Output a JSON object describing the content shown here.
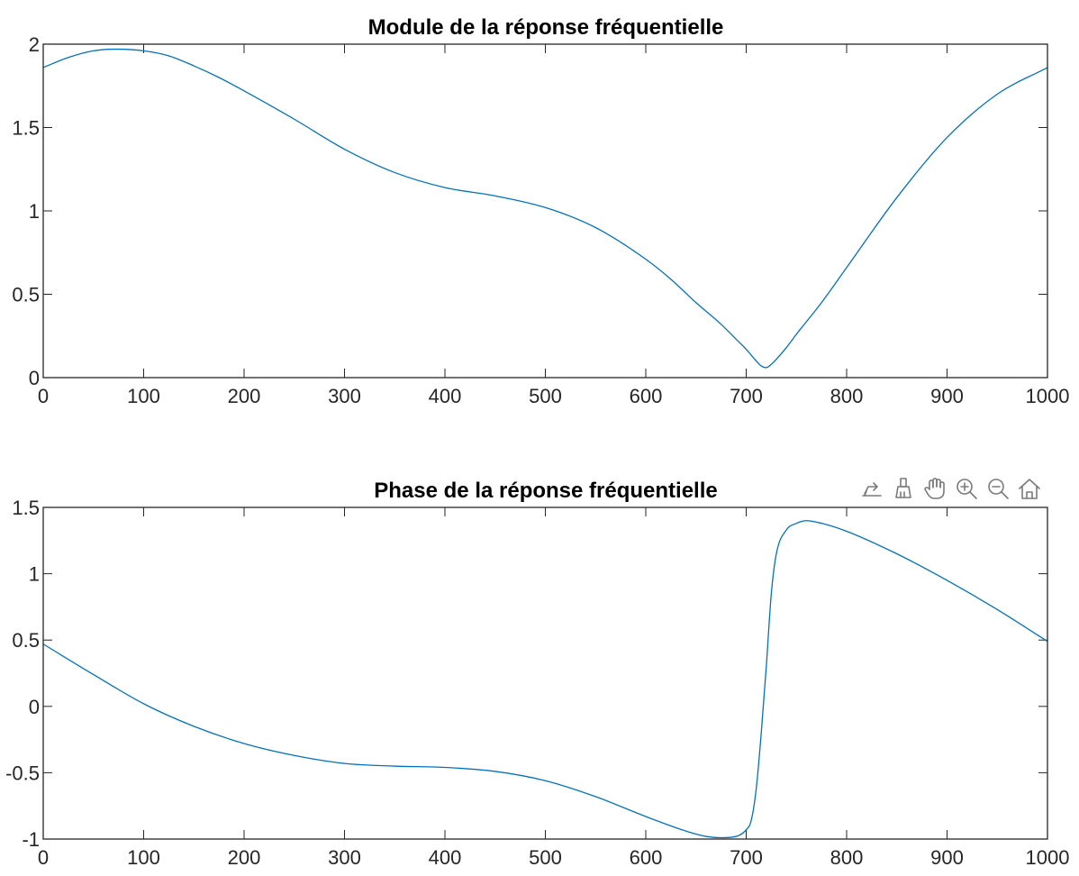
{
  "toolbar": {
    "icons": [
      "export-icon",
      "brush-icon",
      "pan-hand-icon",
      "zoom-in-icon",
      "zoom-out-icon",
      "home-icon"
    ]
  },
  "colors": {
    "series": "#0072BD",
    "axis": "#262626",
    "background": "#ffffff",
    "toolbar_icon": "#7a7a7a"
  },
  "chart_data": [
    {
      "type": "line",
      "title": "Module de la réponse fréquentielle",
      "xlabel": "",
      "ylabel": "",
      "xlim": [
        0,
        1000
      ],
      "ylim": [
        0,
        2
      ],
      "xticks": [
        0,
        100,
        200,
        300,
        400,
        500,
        600,
        700,
        800,
        900,
        1000
      ],
      "yticks": [
        0,
        0.5,
        1,
        1.5,
        2
      ],
      "xtick_labels": [
        "0",
        "100",
        "200",
        "300",
        "400",
        "500",
        "600",
        "700",
        "800",
        "900",
        "1000"
      ],
      "ytick_labels": [
        "0",
        "0.5",
        "1",
        "1.5",
        "2"
      ],
      "grid": false,
      "series": [
        {
          "color": "#0072BD",
          "x": [
            0,
            25,
            50,
            75,
            100,
            125,
            150,
            175,
            200,
            250,
            300,
            350,
            400,
            450,
            500,
            550,
            600,
            625,
            650,
            675,
            690,
            700,
            710,
            715,
            720,
            725,
            730,
            740,
            750,
            775,
            800,
            850,
            900,
            950,
            1000
          ],
          "y": [
            1.86,
            1.92,
            1.96,
            1.97,
            1.96,
            1.93,
            1.87,
            1.8,
            1.72,
            1.55,
            1.37,
            1.23,
            1.14,
            1.09,
            1.02,
            0.9,
            0.71,
            0.59,
            0.45,
            0.32,
            0.23,
            0.17,
            0.1,
            0.07,
            0.06,
            0.08,
            0.11,
            0.18,
            0.26,
            0.45,
            0.66,
            1.08,
            1.44,
            1.7,
            1.86
          ]
        }
      ]
    },
    {
      "type": "line",
      "title": "Phase de la réponse fréquentielle",
      "xlabel": "",
      "ylabel": "",
      "xlim": [
        0,
        1000
      ],
      "ylim": [
        -1,
        1.5
      ],
      "xticks": [
        0,
        100,
        200,
        300,
        400,
        500,
        600,
        700,
        800,
        900,
        1000
      ],
      "yticks": [
        -1,
        -0.5,
        0,
        0.5,
        1,
        1.5
      ],
      "xtick_labels": [
        "0",
        "100",
        "200",
        "300",
        "400",
        "500",
        "600",
        "700",
        "800",
        "900",
        "1000"
      ],
      "ytick_labels": [
        "-1",
        "-0.5",
        "0",
        "0.5",
        "1",
        "1.5"
      ],
      "grid": false,
      "series": [
        {
          "color": "#0072BD",
          "x": [
            0,
            50,
            100,
            150,
            200,
            250,
            300,
            350,
            400,
            450,
            500,
            550,
            600,
            640,
            660,
            675,
            690,
            700,
            705,
            710,
            715,
            720,
            725,
            730,
            740,
            750,
            760,
            775,
            800,
            850,
            900,
            950,
            1000
          ],
          "y": [
            0.47,
            0.24,
            0.02,
            -0.15,
            -0.28,
            -0.37,
            -0.43,
            -0.45,
            -0.46,
            -0.49,
            -0.56,
            -0.68,
            -0.83,
            -0.94,
            -0.98,
            -0.99,
            -0.98,
            -0.93,
            -0.86,
            -0.62,
            -0.2,
            0.3,
            0.85,
            1.15,
            1.33,
            1.38,
            1.4,
            1.38,
            1.32,
            1.15,
            0.95,
            0.73,
            0.49
          ]
        }
      ]
    }
  ]
}
